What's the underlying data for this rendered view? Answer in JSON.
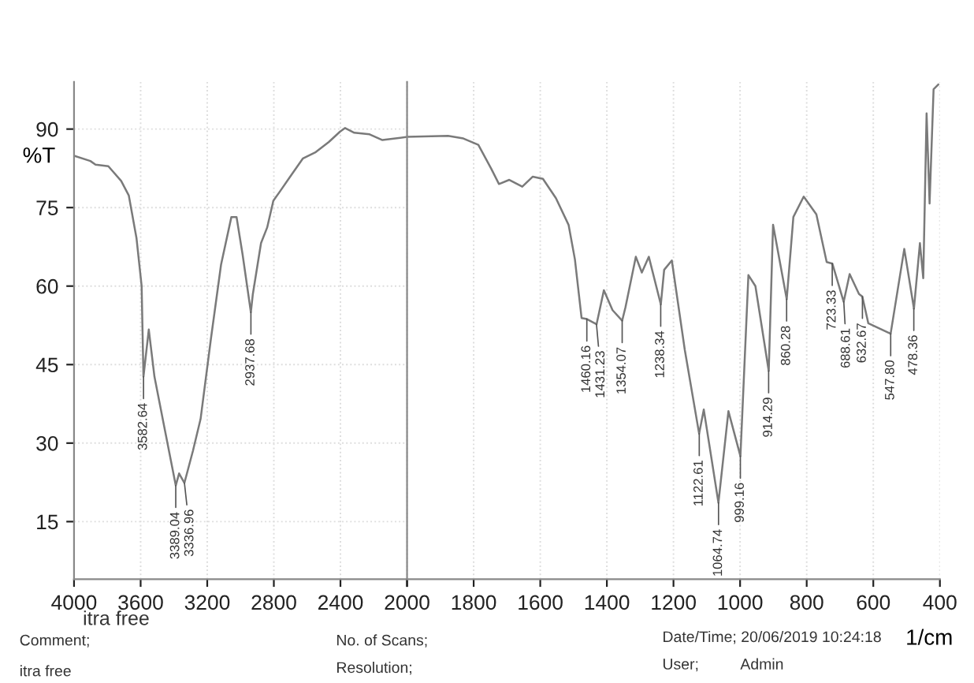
{
  "chart_data": [
    {
      "type": "line",
      "ylabel": "%T",
      "xlim": [
        4000,
        2000
      ],
      "xticks": [
        4000,
        3600,
        3200,
        2800,
        2400,
        2000
      ],
      "ylim": [
        4,
        99
      ],
      "yticks": [
        15,
        30,
        45,
        60,
        75,
        90
      ],
      "grid": true,
      "line_style": "solid",
      "marker": "none",
      "series": [
        {
          "color": "#7a7a7a",
          "x": [
            4000,
            3902,
            3871,
            3794,
            3717,
            3671,
            3625,
            3594,
            3583,
            3551,
            3517,
            3455,
            3389,
            3369,
            3337,
            3286,
            3240,
            3178,
            3117,
            3055,
            3024,
            2988,
            2938,
            2926,
            2877,
            2840,
            2803,
            2763,
            2702,
            2625,
            2548,
            2471,
            2403,
            2372,
            2317,
            2225,
            2148,
            2000
          ],
          "values": [
            84.9,
            83.9,
            83.2,
            82.9,
            80.1,
            77.3,
            69.2,
            60,
            42.7,
            51.7,
            42.7,
            32.6,
            21.9,
            24.2,
            22.4,
            28.5,
            34.6,
            49.9,
            64.1,
            73.2,
            73.2,
            66.1,
            55,
            58.5,
            68.2,
            71.2,
            76.3,
            78.1,
            80.9,
            84.4,
            85.6,
            87.5,
            89.5,
            90.2,
            89.3,
            89,
            87.9,
            88.5
          ]
        }
      ],
      "annotations": [
        {
          "text": "3582.64",
          "x": 3582.64,
          "y": 42.7
        },
        {
          "text": "3389.04",
          "x": 3389.04,
          "y": 21.9
        },
        {
          "text": "3336.96",
          "x": 3336.96,
          "y": 22.4
        },
        {
          "text": "2937.68",
          "x": 2937.68,
          "y": 55
        },
        "itra free",
        "Comment;",
        "itra free",
        "No. of Scans;",
        "Resolution;",
        "Date/Time; 20/06/2019 10:24:18",
        "User;",
        "Admin"
      ]
    },
    {
      "type": "line",
      "xlabel": "1/cm",
      "xlim": [
        2000,
        400
      ],
      "xticks": [
        {
          "value": 2000,
          "label": null
        },
        1800,
        1600,
        1400,
        1200,
        1000,
        800,
        600,
        400
      ],
      "ylim": [
        4,
        99
      ],
      "tick_labels": "x",
      "grid": true,
      "line_style": "solid",
      "marker": "none",
      "series": [
        {
          "color": "#7a7a7a",
          "x": [
            2000,
            1877,
            1831,
            1786,
            1747,
            1724,
            1693,
            1654,
            1623,
            1592,
            1553,
            1515,
            1496,
            1476,
            1460,
            1431,
            1409,
            1383,
            1354,
            1344,
            1313,
            1295,
            1274,
            1238,
            1228,
            1205,
            1166,
            1123,
            1109,
            1065,
            1035,
            999,
            975,
            954,
            914,
            901,
            860,
            840,
            809,
            771,
            740,
            723,
            689,
            671,
            643,
            633,
            615,
            548,
            507,
            478,
            460,
            450,
            440,
            431,
            419,
            405
          ],
          "values": [
            88.5,
            88.7,
            88.2,
            87,
            82.4,
            79.5,
            80.3,
            79,
            80.9,
            80.5,
            76.8,
            71.7,
            65.1,
            53.9,
            53.7,
            52.7,
            59.2,
            55.4,
            53.4,
            56,
            65.6,
            62.6,
            65.6,
            56.5,
            63.1,
            64.9,
            47.8,
            31.8,
            36.4,
            18.6,
            36.1,
            27.5,
            62.1,
            60,
            43.8,
            71.7,
            57.5,
            73.2,
            77.1,
            73.7,
            64.6,
            64.3,
            57,
            62.3,
            58.5,
            58,
            52.9,
            50.9,
            67.1,
            55.7,
            68.2,
            61.5,
            93,
            75.8,
            97.6,
            98.5
          ]
        }
      ],
      "annotations": [
        {
          "text": "1460.16",
          "x": 1460.16,
          "y": 53.7
        },
        {
          "text": "1431.23",
          "x": 1431.23,
          "y": 52.7
        },
        {
          "text": "1354.07",
          "x": 1354.07,
          "y": 53.4
        },
        {
          "text": "1238.34",
          "x": 1238.34,
          "y": 56.5
        },
        {
          "text": "1122.61",
          "x": 1122.61,
          "y": 31.8
        },
        {
          "text": "1064.74",
          "x": 1064.74,
          "y": 18.6
        },
        {
          "text": "999.16",
          "x": 999.16,
          "y": 27.5
        },
        {
          "text": "914.29",
          "x": 914.29,
          "y": 43.8
        },
        {
          "text": "860.28",
          "x": 860.28,
          "y": 57.5
        },
        {
          "text": "723.33",
          "x": 723.33,
          "y": 64.3
        },
        {
          "text": "688.61",
          "x": 688.61,
          "y": 57
        },
        {
          "text": "632.67",
          "x": 632.67,
          "y": 58
        },
        {
          "text": "547.80",
          "x": 547.8,
          "y": 50.9
        },
        {
          "text": "478.36",
          "x": 478.36,
          "y": 55.7
        }
      ]
    }
  ]
}
